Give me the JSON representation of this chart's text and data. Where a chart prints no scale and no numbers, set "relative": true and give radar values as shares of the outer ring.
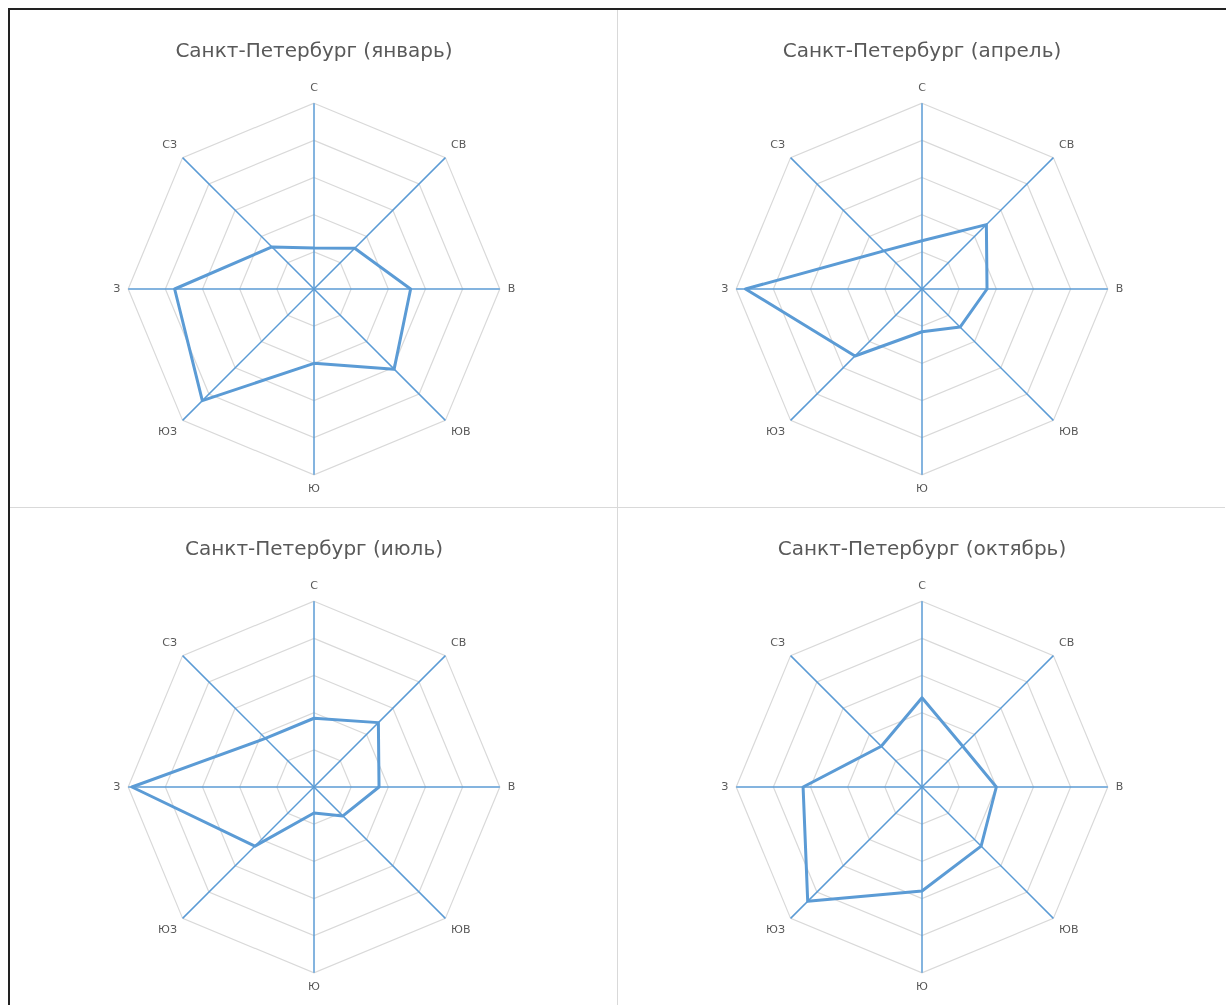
{
  "chart_data": [
    {
      "type": "radar",
      "title": "Санкт-Петербург (январь)",
      "categories": [
        "С",
        "СВ",
        "В",
        "ЮВ",
        "Ю",
        "ЮЗ",
        "З",
        "СЗ"
      ],
      "relative": true,
      "grid": true,
      "marker": "none",
      "series": [
        {
          "color": "#5b9bd5",
          "values": [
            0.22,
            0.31,
            0.52,
            0.61,
            0.4,
            0.85,
            0.75,
            0.32
          ]
        }
      ]
    },
    {
      "type": "radar",
      "title": "Санкт-Петербург (апрель)",
      "categories": [
        "С",
        "СВ",
        "В",
        "ЮВ",
        "Ю",
        "ЮЗ",
        "З",
        "СЗ"
      ],
      "relative": true,
      "grid": true,
      "marker": "none",
      "series": [
        {
          "color": "#5b9bd5",
          "values": [
            0.26,
            0.49,
            0.35,
            0.29,
            0.23,
            0.51,
            0.95,
            0.29
          ]
        }
      ]
    },
    {
      "type": "radar",
      "title": "Санкт-Петербург (июль)",
      "categories": [
        "С",
        "СВ",
        "В",
        "ЮВ",
        "Ю",
        "ЮЗ",
        "З",
        "СЗ"
      ],
      "relative": true,
      "grid": true,
      "marker": "none",
      "series": [
        {
          "color": "#5b9bd5",
          "values": [
            0.37,
            0.49,
            0.35,
            0.22,
            0.14,
            0.45,
            0.98,
            0.37
          ]
        }
      ]
    },
    {
      "type": "radar",
      "title": "Санкт-Петербург (октябрь)",
      "categories": [
        "С",
        "СВ",
        "В",
        "ЮВ",
        "Ю",
        "ЮЗ",
        "З",
        "СЗ"
      ],
      "relative": true,
      "grid": true,
      "marker": "none",
      "series": [
        {
          "color": "#5b9bd5",
          "values": [
            0.48,
            0.31,
            0.4,
            0.45,
            0.56,
            0.87,
            0.64,
            0.31
          ]
        }
      ]
    }
  ]
}
